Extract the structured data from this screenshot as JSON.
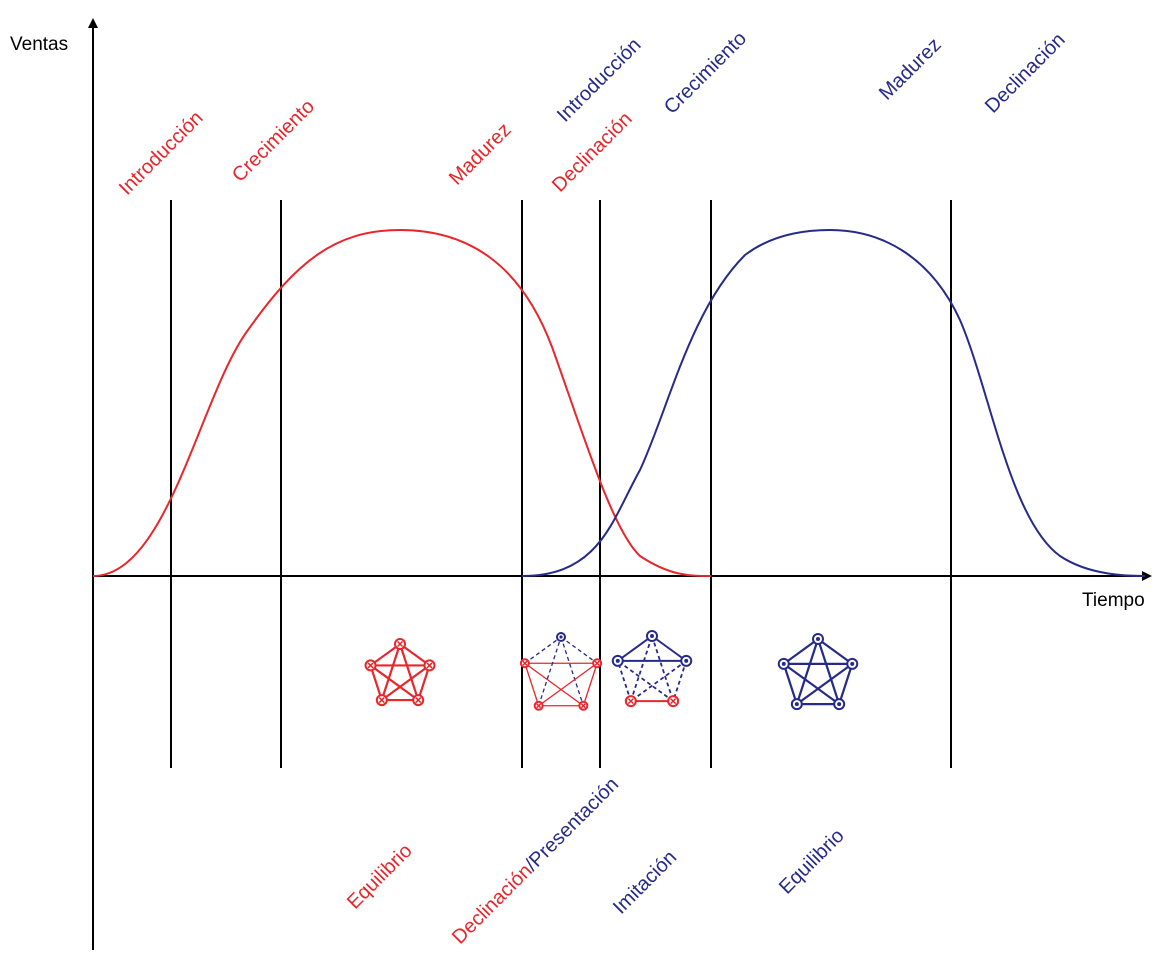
{
  "colors": {
    "red": "#e8262b",
    "blue": "#262b8a",
    "axis": "#000000"
  },
  "axes": {
    "ylabel": "Ventas",
    "xlabel": "Tiempo"
  },
  "product_1": {
    "stages": {
      "introduccion": "Introducción",
      "crecimiento": "Crecimiento",
      "madurez": "Madurez",
      "declinacion": "Declinación"
    }
  },
  "product_2": {
    "stages": {
      "introduccion": "Introducción",
      "crecimiento": "Crecimiento",
      "madurez": "Madurez",
      "declinacion": "Declinación"
    }
  },
  "bottom_labels": {
    "equilibrio_1": "Equilibrio",
    "declinacion": "Declinación",
    "separator": "/",
    "presentacion": "Presentación",
    "imitacion": "Imitación",
    "equilibrio_2": "Equilibrio"
  },
  "network_icons": [
    {
      "name": "red-equilibrium-network-icon",
      "variant": "red-solid"
    },
    {
      "name": "red-declining-network-icon",
      "variant": "red-dashed"
    },
    {
      "name": "blue-imitation-network-icon",
      "variant": "blue-mixed"
    },
    {
      "name": "blue-equilibrium-network-icon",
      "variant": "blue-solid"
    }
  ]
}
